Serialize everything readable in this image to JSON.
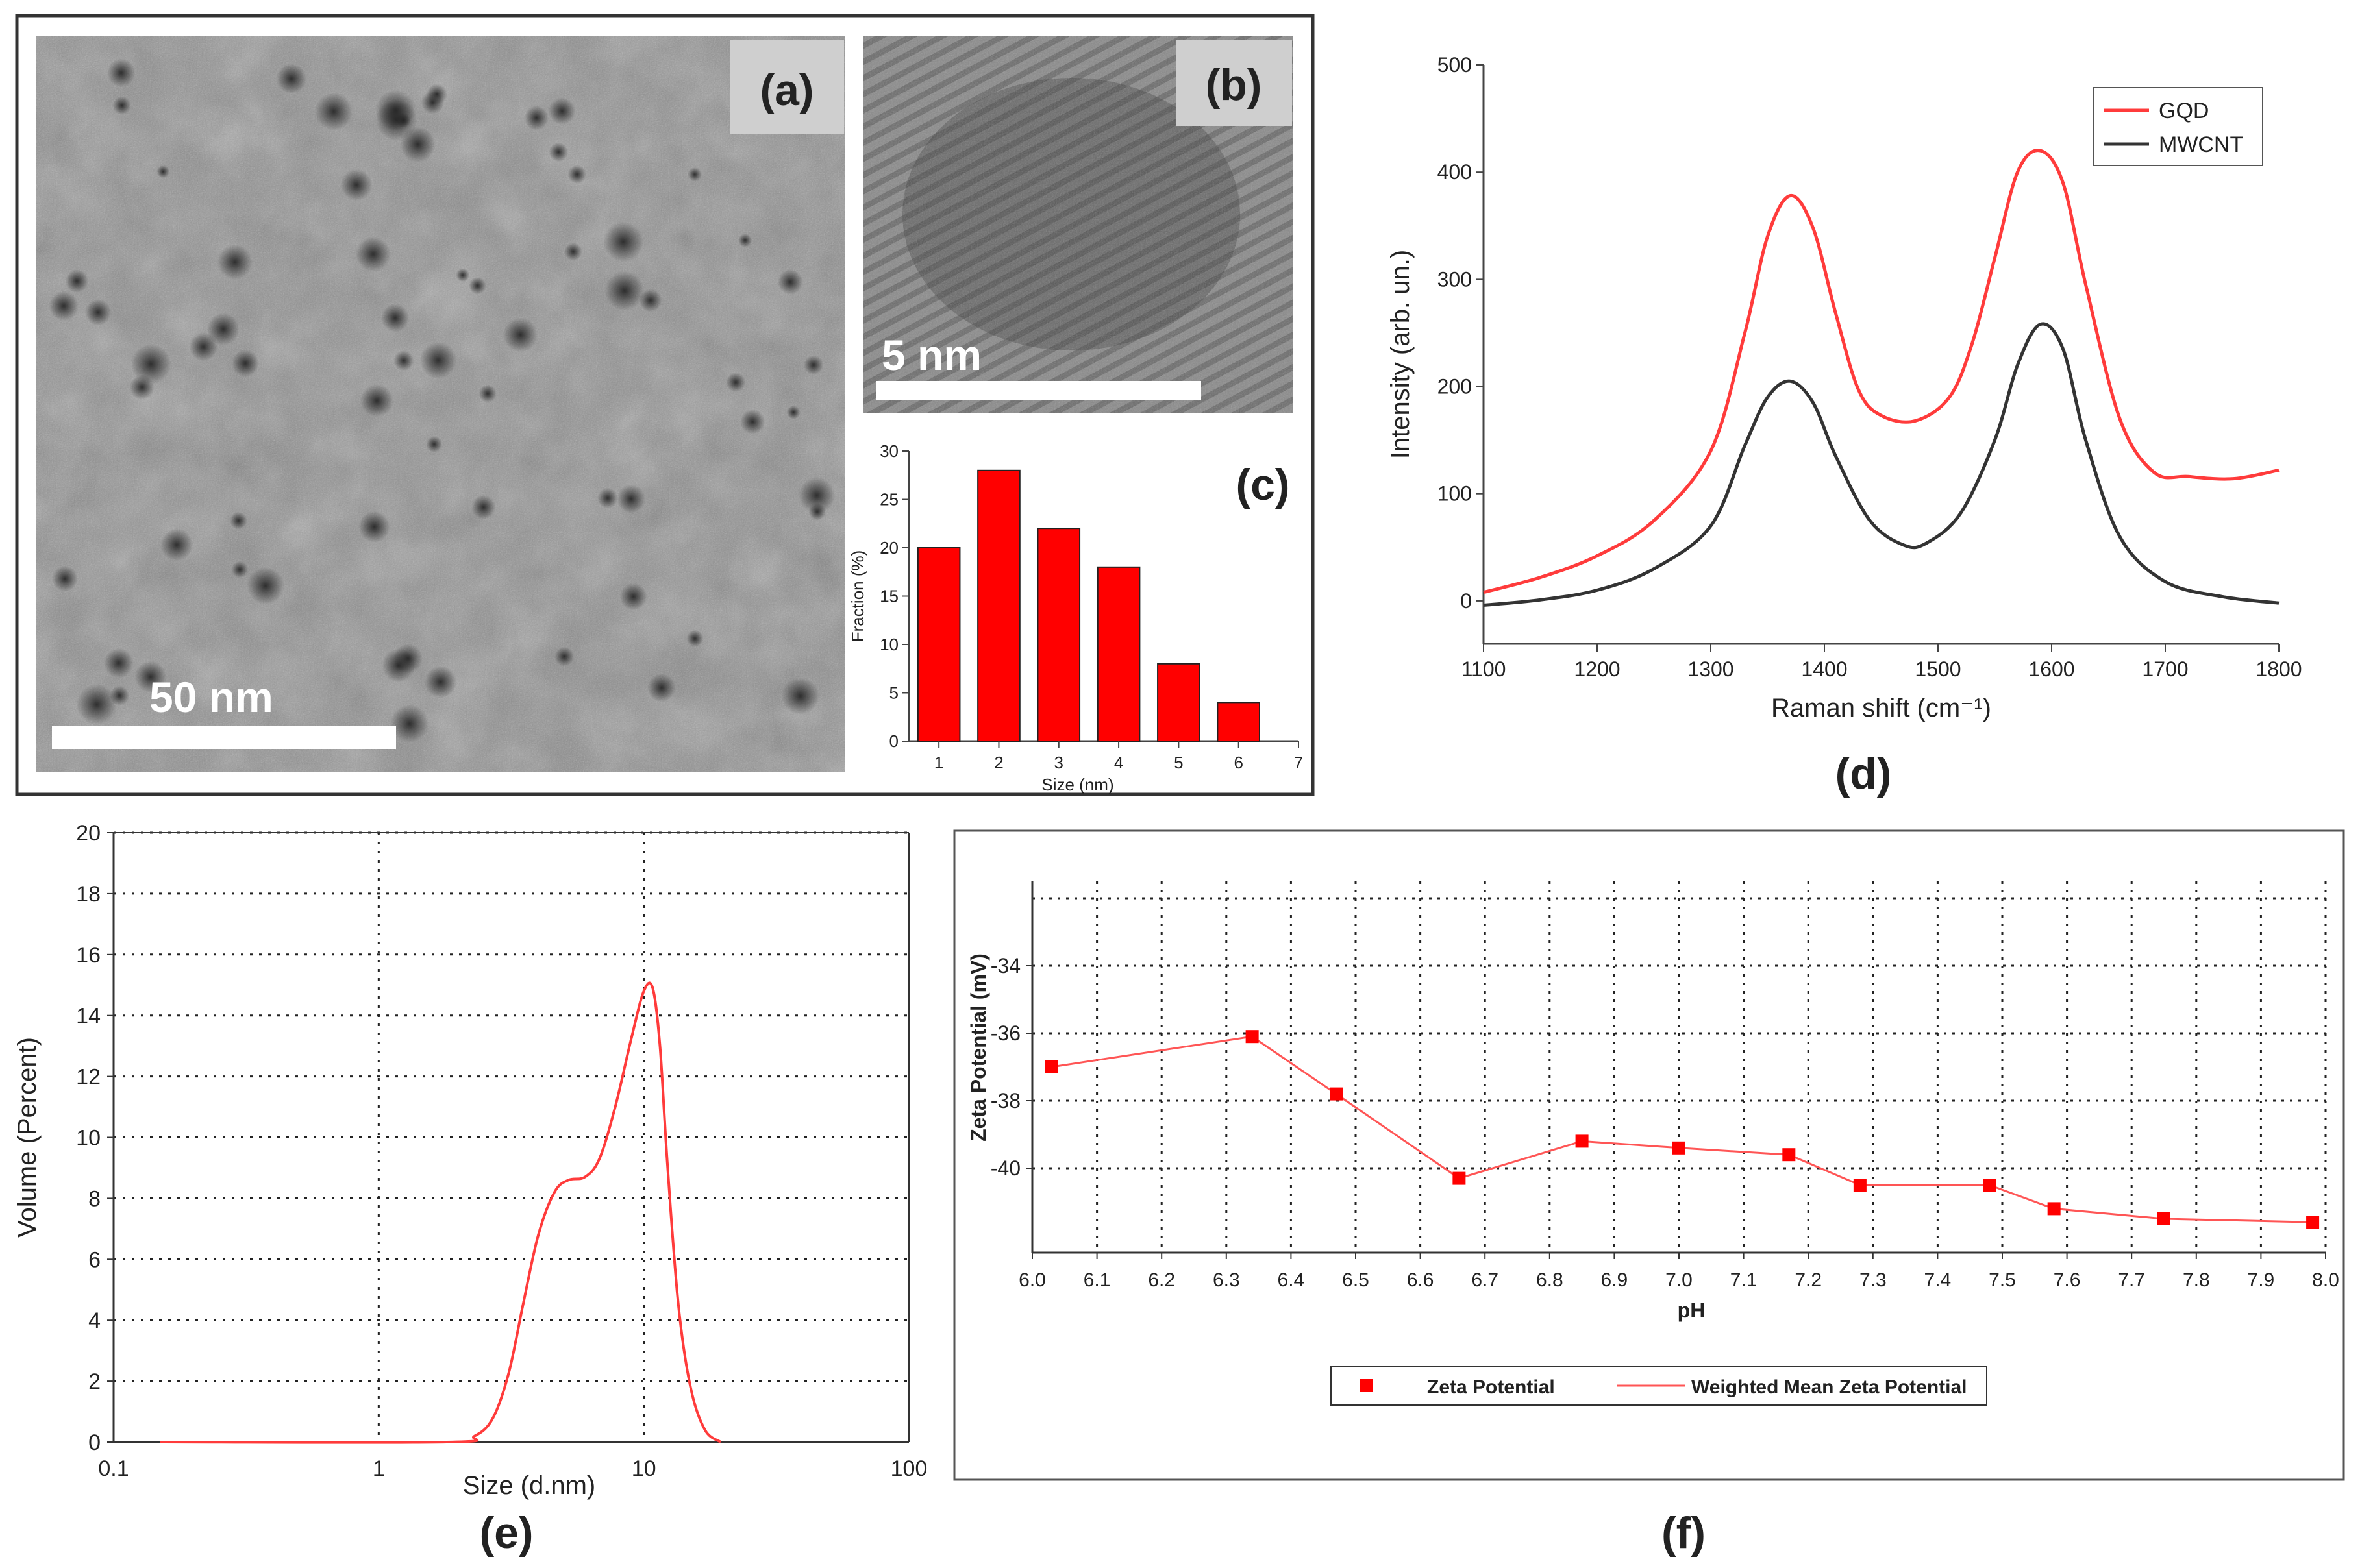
{
  "panels": {
    "a": {
      "label": "(a)",
      "scale_bar": "50 nm"
    },
    "b": {
      "label": "(b)",
      "scale_bar": "5 nm"
    },
    "c": {
      "label": "(c)"
    },
    "d": {
      "label": "(d)"
    },
    "e": {
      "label": "(e)"
    },
    "f": {
      "label": "(f)"
    }
  },
  "colors": {
    "red": "#ff3b3b",
    "bar_red": "#ff0000",
    "dark": "#333333",
    "tem_mid": "#8a8a8a"
  },
  "chart_data": [
    {
      "id": "c",
      "type": "bar",
      "categories": [
        "1",
        "2",
        "3",
        "4",
        "5",
        "6"
      ],
      "x": [
        1,
        2,
        3,
        4,
        5,
        6
      ],
      "values": [
        20,
        28,
        22,
        18,
        8,
        4
      ],
      "xlabel": "Size (nm)",
      "ylabel": "Fraction (%)",
      "xlim": [
        0.5,
        7
      ],
      "ylim": [
        0,
        30
      ],
      "xticks": [
        "1",
        "2",
        "3",
        "4",
        "5",
        "6",
        "7"
      ],
      "yticks": [
        "0",
        "5",
        "10",
        "15",
        "20",
        "25",
        "30"
      ]
    },
    {
      "id": "d",
      "type": "line",
      "xlabel": "Raman shift (cm⁻¹)",
      "ylabel": "Intensity (arb. un.)",
      "xlim": [
        1100,
        1800
      ],
      "ylim": [
        -40,
        500
      ],
      "xticks": [
        "1100",
        "1200",
        "1300",
        "1400",
        "1500",
        "1600",
        "1700",
        "1800"
      ],
      "yticks": [
        "0",
        "100",
        "200",
        "300",
        "400",
        "500"
      ],
      "legend": "top-right",
      "series": [
        {
          "name": "GQD",
          "color": "#ff3b3b",
          "x": [
            1100,
            1150,
            1200,
            1250,
            1300,
            1330,
            1350,
            1370,
            1390,
            1410,
            1430,
            1450,
            1480,
            1510,
            1530,
            1550,
            1570,
            1590,
            1610,
            1630,
            1660,
            1690,
            1720,
            1760,
            1800
          ],
          "y": [
            8,
            22,
            42,
            75,
            140,
            250,
            340,
            378,
            348,
            268,
            197,
            173,
            168,
            190,
            240,
            320,
            400,
            420,
            390,
            295,
            170,
            120,
            116,
            114,
            122
          ]
        },
        {
          "name": "MWCNT",
          "color": "#333333",
          "x": [
            1100,
            1150,
            1200,
            1250,
            1300,
            1330,
            1350,
            1370,
            1390,
            1410,
            1440,
            1470,
            1490,
            1520,
            1550,
            1570,
            1590,
            1610,
            1630,
            1660,
            1700,
            1750,
            1800
          ],
          "y": [
            -4,
            1,
            10,
            30,
            70,
            145,
            190,
            205,
            185,
            135,
            75,
            52,
            54,
            82,
            150,
            220,
            258,
            235,
            150,
            60,
            18,
            4,
            -2
          ]
        }
      ]
    },
    {
      "id": "e",
      "type": "line",
      "xscale": "log",
      "xlabel": "Size (d.nm)",
      "ylabel": "Volume (Percent)",
      "xlim": [
        0.1,
        100
      ],
      "ylim": [
        0,
        20
      ],
      "xticks": [
        "0.1",
        "1",
        "10",
        "100"
      ],
      "yticks": [
        "0",
        "2",
        "4",
        "6",
        "8",
        "10",
        "12",
        "14",
        "16",
        "18",
        "20"
      ],
      "series": [
        {
          "name": "Volume",
          "color": "#ff3b3b",
          "x": [
            0.15,
            1.8,
            2.3,
            2.7,
            3.1,
            3.5,
            4.0,
            4.6,
            5.2,
            6.0,
            6.8,
            7.8,
            9.0,
            10.0,
            10.8,
            11.5,
            12.3,
            13.5,
            15.0,
            17.0,
            19.5
          ],
          "y": [
            0,
            0,
            0.2,
            0.8,
            2.3,
            4.5,
            6.8,
            8.2,
            8.6,
            8.7,
            9.3,
            11.0,
            13.3,
            14.8,
            14.9,
            13.0,
            9.0,
            4.5,
            1.8,
            0.4,
            0
          ]
        }
      ]
    },
    {
      "id": "f",
      "type": "scatter",
      "xlabel": "pH",
      "ylabel": "Zeta Potential (mV)",
      "xlim": [
        6.0,
        8.0
      ],
      "ylim": [
        -42.5,
        -31.5
      ],
      "xticks": [
        "6.0",
        "6.1",
        "6.2",
        "6.3",
        "6.4",
        "6.5",
        "6.6",
        "6.7",
        "6.8",
        "6.9",
        "7.0",
        "7.1",
        "7.2",
        "7.3",
        "7.4",
        "7.5",
        "7.6",
        "7.7",
        "7.8",
        "7.9",
        "8.0"
      ],
      "yticks": [
        "-34",
        "-36",
        "-38",
        "-40"
      ],
      "legend": "bottom-center",
      "series": [
        {
          "name": "Zeta Potential",
          "marker": "square",
          "color": "#ff0000",
          "x": [
            6.03,
            6.34,
            6.47,
            6.66,
            6.85,
            7.0,
            7.17,
            7.28,
            7.48,
            7.58,
            7.75,
            7.98
          ],
          "y": [
            -37.0,
            -36.1,
            -37.8,
            -40.3,
            -39.2,
            -39.4,
            -39.6,
            -40.5,
            -40.5,
            -41.2,
            -41.5,
            -41.6
          ]
        },
        {
          "name": "Weighted Mean Zeta Potential",
          "line": true,
          "color": "#ff5555"
        }
      ]
    }
  ]
}
